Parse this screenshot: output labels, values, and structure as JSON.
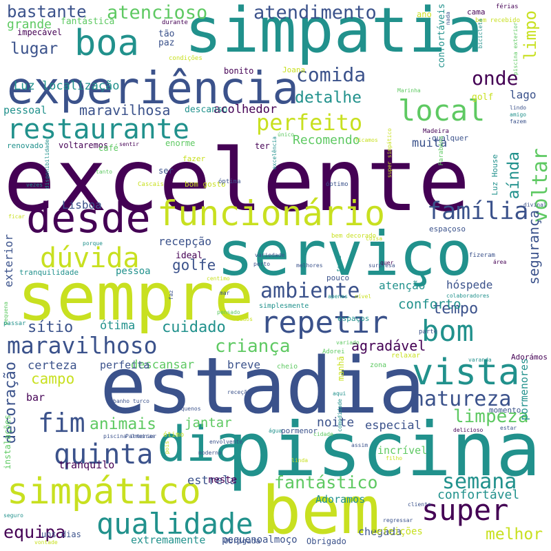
{
  "palette": [
    "#440154",
    "#3b528b",
    "#21918c",
    "#5ec962",
    "#c8e020"
  ],
  "words": [
    {
      "text": "excelente",
      "color": 0
    },
    {
      "text": "estadia",
      "color": 1
    },
    {
      "text": "piscina",
      "color": 2
    },
    {
      "text": "simpatia",
      "color": 2
    },
    {
      "text": "serviço",
      "color": 2
    },
    {
      "text": "sempre",
      "color": 4
    },
    {
      "text": "experiência",
      "color": 1
    },
    {
      "text": "bem",
      "color": 4
    },
    {
      "text": "desde",
      "color": 0
    },
    {
      "text": "dia",
      "color": 2
    },
    {
      "text": "simpático",
      "color": 4
    },
    {
      "text": "funcionário",
      "color": 4
    },
    {
      "text": "boa",
      "color": 2
    },
    {
      "text": "restaurante",
      "color": 2
    },
    {
      "text": "repetir",
      "color": 1
    },
    {
      "text": "vista",
      "color": 2
    },
    {
      "text": "bom",
      "color": 2
    },
    {
      "text": "local",
      "color": 3
    },
    {
      "text": "qualidade",
      "color": 2
    },
    {
      "text": "super",
      "color": 0
    },
    {
      "text": "quinta",
      "color": 1
    },
    {
      "text": "família",
      "color": 1
    },
    {
      "text": "dúvida",
      "color": 4
    },
    {
      "text": "maravilhoso",
      "color": 1
    },
    {
      "text": "natureza",
      "color": 1
    },
    {
      "text": "ambiente",
      "color": 1
    },
    {
      "text": "semana",
      "color": 2
    },
    {
      "text": "comida",
      "color": 1
    },
    {
      "text": "fim",
      "color": 1
    },
    {
      "text": "onde",
      "color": 0
    },
    {
      "text": "voltar",
      "color": 3
    },
    {
      "text": "perfeito",
      "color": 4
    },
    {
      "text": "atencioso",
      "color": 3
    },
    {
      "text": "atendimento",
      "color": 1
    },
    {
      "text": "bastante",
      "color": 1
    },
    {
      "text": "limpeza",
      "color": 3
    },
    {
      "text": "equipa",
      "color": 0
    },
    {
      "text": "criança",
      "color": 3
    },
    {
      "text": "cuidado",
      "color": 2
    },
    {
      "text": "fantástico",
      "color": 3
    },
    {
      "text": "animais",
      "color": 3
    },
    {
      "text": "detalhe",
      "color": 2
    },
    {
      "text": "lugar",
      "color": 1
    },
    {
      "text": "campo",
      "color": 4
    },
    {
      "text": "limpo",
      "color": 4
    },
    {
      "text": "decoração",
      "color": 1
    },
    {
      "text": "melhor",
      "color": 4
    },
    {
      "text": "aínda",
      "color": 2
    },
    {
      "text": "tempo",
      "color": 1
    },
    {
      "text": "agradável",
      "color": 0
    },
    {
      "text": "maravilhosa",
      "color": 1
    },
    {
      "text": "golfe",
      "color": 1
    },
    {
      "text": "sítio",
      "color": 1
    },
    {
      "text": "jantar",
      "color": 3
    },
    {
      "text": "segurança",
      "color": 1
    },
    {
      "text": "conforto",
      "color": 2
    },
    {
      "text": "Recomendo",
      "color": 3
    },
    {
      "text": "confortável",
      "color": 2
    },
    {
      "text": "ótima",
      "color": 2
    },
    {
      "text": "muita",
      "color": 1
    },
    {
      "text": "certeza",
      "color": 1
    },
    {
      "text": "noite",
      "color": 1
    },
    {
      "text": "estrela",
      "color": 1
    },
    {
      "text": "especial",
      "color": 1
    },
    {
      "text": "recepção",
      "color": 1
    },
    {
      "text": "Luz localização",
      "color": 2
    },
    {
      "text": "grande",
      "color": 3
    },
    {
      "text": "acolhedor",
      "color": 0
    },
    {
      "text": "descansar",
      "color": 3
    },
    {
      "text": "breve",
      "color": 1
    },
    {
      "text": "pessoal",
      "color": 2
    },
    {
      "text": "Lisboa",
      "color": 1
    },
    {
      "text": "lago",
      "color": 1
    },
    {
      "text": "hóspede",
      "color": 1
    },
    {
      "text": "exterior",
      "color": 1
    },
    {
      "text": "atenção",
      "color": 2
    },
    {
      "text": "pessoa",
      "color": 2
    },
    {
      "text": "perfeita",
      "color": 1
    },
    {
      "text": "bar",
      "color": 0
    },
    {
      "text": "tranquilo",
      "color": 0
    },
    {
      "text": "incrível",
      "color": 3
    },
    {
      "text": "Adoramos",
      "color": 2
    },
    {
      "text": "chegada",
      "color": 1
    },
    {
      "text": "neste",
      "color": 0
    },
    {
      "text": "refeições",
      "color": 4
    },
    {
      "text": "pequenoalmoço",
      "color": 1
    },
    {
      "text": "extremamente",
      "color": 2
    },
    {
      "text": "pormenores",
      "color": 2
    },
    {
      "text": "ideal",
      "color": 0
    },
    {
      "text": "golf",
      "color": 4
    },
    {
      "text": "confortáveis",
      "color": 2
    },
    {
      "text": "fantástica",
      "color": 3
    },
    {
      "text": "impecável",
      "color": 0
    },
    {
      "text": "tão",
      "color": 1
    },
    {
      "text": "paz",
      "color": 1
    },
    {
      "text": "Joana",
      "color": 4
    },
    {
      "text": "bonito",
      "color": 0
    },
    {
      "text": "descanso",
      "color": 2
    },
    {
      "text": "renovado",
      "color": 2
    },
    {
      "text": "voltaremos",
      "color": 0
    },
    {
      "text": "enorme",
      "color": 3
    },
    {
      "text": "café",
      "color": 3
    },
    {
      "text": "ter",
      "color": 0
    },
    {
      "text": "ser",
      "color": 1
    },
    {
      "text": "fazer",
      "color": 4
    },
    {
      "text": "bom gosto",
      "color": 4
    },
    {
      "text": "tranquilidade",
      "color": 2
    },
    {
      "text": "simplesmente",
      "color": 2
    },
    {
      "text": "pouco",
      "color": 1
    },
    {
      "text": "espaços",
      "color": 2
    },
    {
      "text": "relaxar",
      "color": 4
    },
    {
      "text": "zona",
      "color": 3
    },
    {
      "text": "cheio",
      "color": 3
    },
    {
      "text": "uns dias",
      "color": 1
    },
    {
      "text": "Obrigado",
      "color": 1
    },
    {
      "text": "Obrigada",
      "color": 1
    },
    {
      "text": "manhã",
      "color": 4
    },
    {
      "text": "instalações",
      "color": 3
    },
    {
      "text": "pormenor",
      "color": 1
    },
    {
      "text": "ótimo",
      "color": 4
    },
    {
      "text": "momento",
      "color": 1
    },
    {
      "text": "Luz House",
      "color": 2
    },
    {
      "text": "qualquer",
      "color": 1
    },
    {
      "text": "espaçoso",
      "color": 1
    },
    {
      "text": "Adorámos",
      "color": 0
    },
    {
      "text": "ano",
      "color": 4
    },
    {
      "text": "cama",
      "color": 0
    },
    {
      "text": "férias",
      "color": 0
    },
    {
      "text": "bem recebido",
      "color": 4
    },
    {
      "text": "durante",
      "color": 0
    },
    {
      "text": "condições",
      "color": 4
    },
    {
      "text": "nada",
      "color": 1
    },
    {
      "text": "bicicleta",
      "color": 2
    },
    {
      "text": "piscina exterior",
      "color": 3
    },
    {
      "text": "perto",
      "color": 1
    },
    {
      "text": "Marinha",
      "color": 3
    },
    {
      "text": "lindo",
      "color": 1
    },
    {
      "text": "amigo",
      "color": 2
    },
    {
      "text": "fazem",
      "color": 1
    },
    {
      "text": "Madeira",
      "color": 0
    },
    {
      "text": "ficamos",
      "color": 4
    },
    {
      "text": "único",
      "color": 3
    },
    {
      "text": "super simpático",
      "color": 4
    },
    {
      "text": "excelência",
      "color": 2
    },
    {
      "text": "Parabéns",
      "color": 3
    },
    {
      "text": "óptima",
      "color": 1
    },
    {
      "text": "óptimo",
      "color": 1
    },
    {
      "text": "tanto",
      "color": 3
    },
    {
      "text": "sentir",
      "color": 0
    },
    {
      "text": "Cascais",
      "color": 4
    },
    {
      "text": "vezes",
      "color": 2
    },
    {
      "text": "disponibilidade",
      "color": 2
    },
    {
      "text": "ficar",
      "color": 4
    },
    {
      "text": "divinal",
      "color": 1
    },
    {
      "text": "porque",
      "color": 2
    },
    {
      "text": "variedade",
      "color": 1
    },
    {
      "text": "forma",
      "color": 2
    },
    {
      "text": "bem decorado",
      "color": 4
    },
    {
      "text": "coisa",
      "color": 4
    },
    {
      "text": "melhores",
      "color": 1
    },
    {
      "text": "surpresa",
      "color": 1
    },
    {
      "text": "quer",
      "color": 0
    },
    {
      "text": "fizeram",
      "color": 1
    },
    {
      "text": "área",
      "color": 0
    },
    {
      "text": "centimo",
      "color": 4
    },
    {
      "text": "faz",
      "color": 1
    },
    {
      "text": "mar",
      "color": 1
    },
    {
      "text": "nível",
      "color": 4
    },
    {
      "text": "apenas",
      "color": 2
    },
    {
      "text": "colaboradores",
      "color": 2
    },
    {
      "text": "pequena",
      "color": 3
    },
    {
      "text": "passar",
      "color": 2
    },
    {
      "text": "pensado",
      "color": 3
    },
    {
      "text": "miúdos",
      "color": 4
    },
    {
      "text": "parte",
      "color": 1
    },
    {
      "text": "variado",
      "color": 3
    },
    {
      "text": "Adorei",
      "color": 3
    },
    {
      "text": "varanda",
      "color": 2
    },
    {
      "text": "banho turco",
      "color": 1
    },
    {
      "text": "receção",
      "color": 1
    },
    {
      "text": "aqui",
      "color": 2
    },
    {
      "text": "comodidade",
      "color": 2
    },
    {
      "text": "pequenos",
      "color": 1
    },
    {
      "text": "piscina interior",
      "color": 1
    },
    {
      "text": "Palmeiras",
      "color": 1
    },
    {
      "text": "envolvente",
      "color": 1
    },
    {
      "text": "moderno",
      "color": 1
    },
    {
      "text": "água",
      "color": 2
    },
    {
      "text": "cidade",
      "color": 3
    },
    {
      "text": "delicioso",
      "color": 0
    },
    {
      "text": "estar",
      "color": 1
    },
    {
      "text": "pois",
      "color": 4
    },
    {
      "text": "linda",
      "color": 4
    },
    {
      "text": "assim",
      "color": 1
    },
    {
      "text": "filho",
      "color": 4
    },
    {
      "text": "seguro",
      "color": 2
    },
    {
      "text": "cliente",
      "color": 1
    },
    {
      "text": "regressar",
      "color": 1
    },
    {
      "text": "vontade",
      "color": 4
    }
  ]
}
